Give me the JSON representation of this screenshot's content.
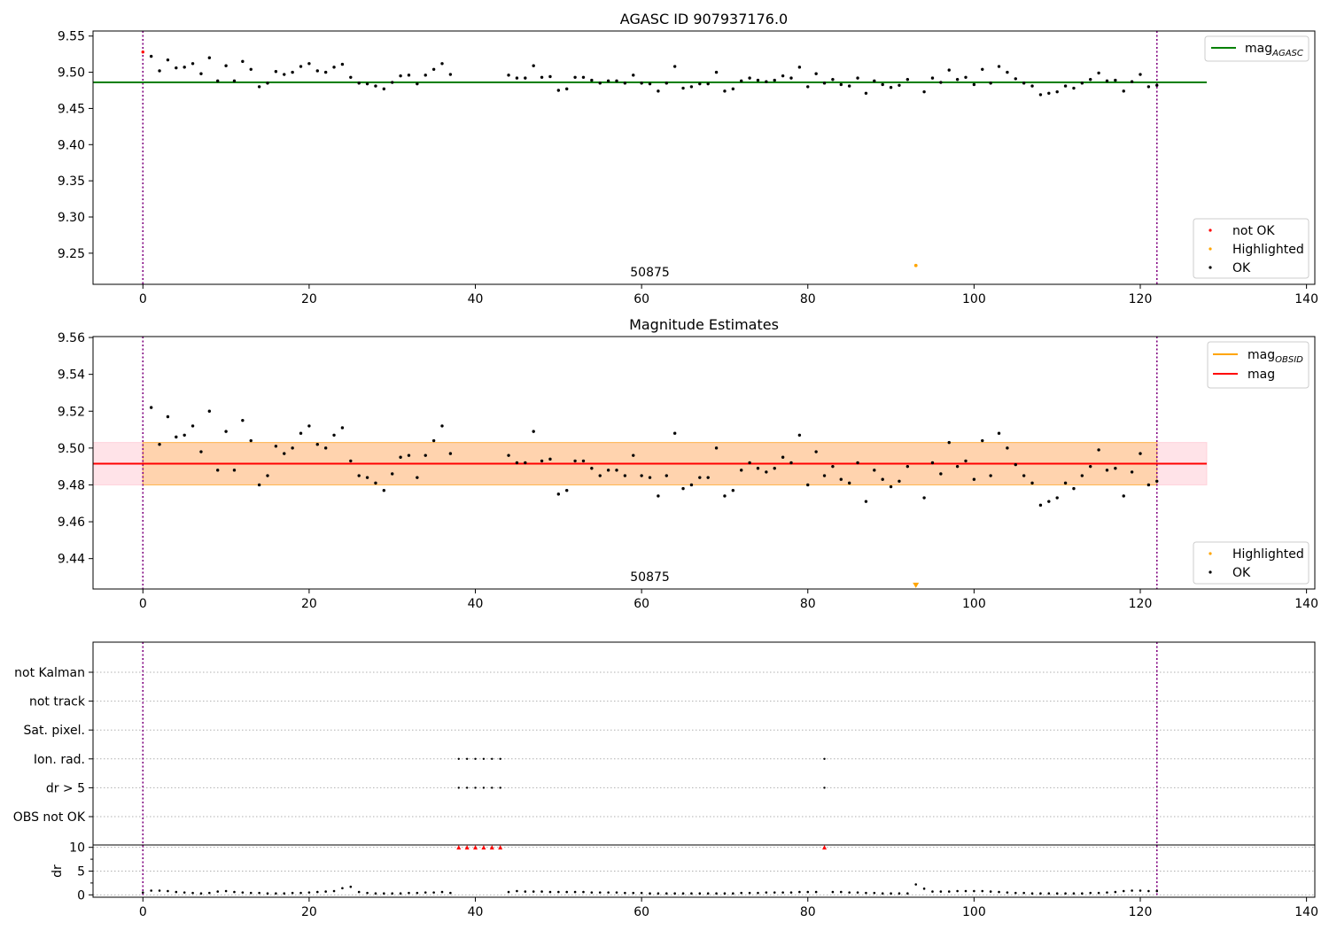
{
  "chart_data": [
    {
      "type": "scatter",
      "title": "AGASC ID 907937176.0",
      "xlim": [
        -6,
        141
      ],
      "ylim": [
        9.207,
        9.557
      ],
      "xticks": [
        0,
        20,
        40,
        60,
        80,
        100,
        120,
        140
      ],
      "yticks": [
        9.25,
        9.3,
        9.35,
        9.4,
        9.45,
        9.5,
        9.55
      ],
      "ytick_labels": [
        "9.25",
        "9.30",
        "9.35",
        "9.40",
        "9.45",
        "9.50",
        "9.55"
      ],
      "obsid_label": "50875",
      "obsid_label_x": 61,
      "vlines": [
        0,
        122
      ],
      "hline": {
        "name": "mag_AGASC",
        "label_main": "mag",
        "label_sub": "AGASC",
        "y": 9.486,
        "x_end": 128,
        "color": "#008000"
      },
      "legend_lines": [
        {
          "label_main": "mag",
          "label_sub": "AGASC",
          "color": "#008000"
        }
      ],
      "legend_points": [
        {
          "label": "not OK",
          "color": "#ff0000"
        },
        {
          "label": "Highlighted",
          "color": "#ffa500"
        },
        {
          "label": "OK",
          "color": "#000000"
        }
      ],
      "not_ok_points": [
        {
          "x": 0,
          "y": 9.528
        }
      ],
      "highlighted_points": [
        {
          "x": 93,
          "y": 9.233
        }
      ],
      "series": {
        "x": [
          1,
          2,
          3,
          4,
          5,
          6,
          7,
          8,
          9,
          10,
          11,
          12,
          13,
          14,
          15,
          16,
          17,
          18,
          19,
          20,
          21,
          22,
          23,
          24,
          25,
          26,
          27,
          28,
          29,
          30,
          31,
          32,
          33,
          34,
          35,
          36,
          37,
          44,
          45,
          46,
          47,
          48,
          49,
          50,
          51,
          52,
          53,
          54,
          55,
          56,
          57,
          58,
          59,
          60,
          61,
          62,
          63,
          64,
          65,
          66,
          67,
          68,
          69,
          70,
          71,
          72,
          73,
          74,
          75,
          76,
          77,
          78,
          79,
          80,
          81,
          82,
          83,
          84,
          85,
          86,
          87,
          88,
          89,
          90,
          91,
          92,
          94,
          95,
          96,
          97,
          98,
          99,
          100,
          101,
          102,
          103,
          104,
          105,
          106,
          107,
          108,
          109,
          110,
          111,
          112,
          113,
          114,
          115,
          116,
          117,
          118,
          119,
          120,
          121,
          122
        ],
        "y": [
          9.522,
          9.502,
          9.517,
          9.506,
          9.507,
          9.512,
          9.498,
          9.52,
          9.488,
          9.509,
          9.488,
          9.515,
          9.504,
          9.48,
          9.485,
          9.501,
          9.497,
          9.5,
          9.508,
          9.512,
          9.502,
          9.5,
          9.507,
          9.511,
          9.493,
          9.485,
          9.484,
          9.481,
          9.477,
          9.486,
          9.495,
          9.496,
          9.484,
          9.496,
          9.504,
          9.512,
          9.497,
          9.496,
          9.492,
          9.492,
          9.509,
          9.493,
          9.494,
          9.475,
          9.477,
          9.493,
          9.493,
          9.489,
          9.485,
          9.488,
          9.488,
          9.485,
          9.496,
          9.485,
          9.484,
          9.474,
          9.485,
          9.508,
          9.478,
          9.48,
          9.484,
          9.484,
          9.5,
          9.474,
          9.477,
          9.488,
          9.492,
          9.489,
          9.487,
          9.489,
          9.495,
          9.492,
          9.507,
          9.48,
          9.498,
          9.485,
          9.49,
          9.483,
          9.481,
          9.492,
          9.471,
          9.488,
          9.483,
          9.479,
          9.482,
          9.49,
          9.473,
          9.492,
          9.486,
          9.503,
          9.49,
          9.493,
          9.483,
          9.504,
          9.485,
          9.508,
          9.5,
          9.491,
          9.485,
          9.481,
          9.469,
          9.471,
          9.473,
          9.481,
          9.478,
          9.485,
          9.49,
          9.499,
          9.488,
          9.489,
          9.474,
          9.487,
          9.497,
          9.48,
          9.482
        ]
      }
    },
    {
      "type": "scatter",
      "title": "Magnitude Estimates",
      "xlim": [
        -6,
        141
      ],
      "ylim": [
        9.4235,
        9.5605
      ],
      "xticks": [
        0,
        20,
        40,
        60,
        80,
        100,
        120,
        140
      ],
      "yticks": [
        9.44,
        9.46,
        9.48,
        9.5,
        9.52,
        9.54,
        9.56
      ],
      "ytick_labels": [
        "9.44",
        "9.46",
        "9.48",
        "9.50",
        "9.52",
        "9.54",
        "9.56"
      ],
      "obsid_label": "50875",
      "obsid_label_x": 61,
      "vlines": [
        0,
        122
      ],
      "bands": [
        {
          "name": "mag-band",
          "x0": -6,
          "x1": 128,
          "y0": 9.48,
          "y1": 9.503,
          "color": "#ffc0cb",
          "opacity": 0.45
        },
        {
          "name": "obsid-band",
          "x0": 0,
          "x1": 122,
          "y0": 9.48,
          "y1": 9.503,
          "color": "#ffa500",
          "opacity": 0.25
        }
      ],
      "lines": [
        {
          "name": "mag_OBSID",
          "y": 9.4915,
          "x0": 0,
          "x1": 122,
          "color": "#ffa500"
        },
        {
          "name": "mag",
          "y": 9.4915,
          "x0": -6,
          "x1": 128,
          "color": "#ff0000"
        }
      ],
      "legend_lines": [
        {
          "label_main": "mag",
          "label_sub": "OBSID",
          "color": "#ffa500"
        },
        {
          "label_main": "mag",
          "label_sub": "",
          "color": "#ff0000"
        }
      ],
      "legend_points": [
        {
          "label": "Highlighted",
          "color": "#ffa500"
        },
        {
          "label": "OK",
          "color": "#000000"
        }
      ],
      "highlighted_points": [
        {
          "x": 93,
          "y": 9.4255,
          "marker": "triangle"
        }
      ],
      "series": {
        "x": [
          1,
          2,
          3,
          4,
          5,
          6,
          7,
          8,
          9,
          10,
          11,
          12,
          13,
          14,
          15,
          16,
          17,
          18,
          19,
          20,
          21,
          22,
          23,
          24,
          25,
          26,
          27,
          28,
          29,
          30,
          31,
          32,
          33,
          34,
          35,
          36,
          37,
          44,
          45,
          46,
          47,
          48,
          49,
          50,
          51,
          52,
          53,
          54,
          55,
          56,
          57,
          58,
          59,
          60,
          61,
          62,
          63,
          64,
          65,
          66,
          67,
          68,
          69,
          70,
          71,
          72,
          73,
          74,
          75,
          76,
          77,
          78,
          79,
          80,
          81,
          82,
          83,
          84,
          85,
          86,
          87,
          88,
          89,
          90,
          91,
          92,
          94,
          95,
          96,
          97,
          98,
          99,
          100,
          101,
          102,
          103,
          104,
          105,
          106,
          107,
          108,
          109,
          110,
          111,
          112,
          113,
          114,
          115,
          116,
          117,
          118,
          119,
          120,
          121,
          122
        ],
        "y": [
          9.522,
          9.502,
          9.517,
          9.506,
          9.507,
          9.512,
          9.498,
          9.52,
          9.488,
          9.509,
          9.488,
          9.515,
          9.504,
          9.48,
          9.485,
          9.501,
          9.497,
          9.5,
          9.508,
          9.512,
          9.502,
          9.5,
          9.507,
          9.511,
          9.493,
          9.485,
          9.484,
          9.481,
          9.477,
          9.486,
          9.495,
          9.496,
          9.484,
          9.496,
          9.504,
          9.512,
          9.497,
          9.496,
          9.492,
          9.492,
          9.509,
          9.493,
          9.494,
          9.475,
          9.477,
          9.493,
          9.493,
          9.489,
          9.485,
          9.488,
          9.488,
          9.485,
          9.496,
          9.485,
          9.484,
          9.474,
          9.485,
          9.508,
          9.478,
          9.48,
          9.484,
          9.484,
          9.5,
          9.474,
          9.477,
          9.488,
          9.492,
          9.489,
          9.487,
          9.489,
          9.495,
          9.492,
          9.507,
          9.48,
          9.498,
          9.485,
          9.49,
          9.483,
          9.481,
          9.492,
          9.471,
          9.488,
          9.483,
          9.479,
          9.482,
          9.49,
          9.473,
          9.492,
          9.486,
          9.503,
          9.49,
          9.493,
          9.483,
          9.504,
          9.485,
          9.508,
          9.5,
          9.491,
          9.485,
          9.481,
          9.469,
          9.471,
          9.473,
          9.481,
          9.478,
          9.485,
          9.49,
          9.499,
          9.488,
          9.489,
          9.474,
          9.487,
          9.497,
          9.48,
          9.482
        ]
      }
    },
    {
      "type": "scatter",
      "title": "",
      "xlim": [
        -6,
        141
      ],
      "xticks": [
        0,
        20,
        40,
        60,
        80,
        100,
        120,
        140
      ],
      "vlines": [
        0,
        122
      ],
      "flag_rows": [
        "not Kalman",
        "not track",
        "Sat. pixel.",
        "Ion. rad.",
        "dr > 5",
        "OBS not OK"
      ],
      "flags": {
        "Ion. rad.": [
          38,
          39,
          40,
          41,
          42,
          43,
          82
        ],
        "dr > 5": [
          38,
          39,
          40,
          41,
          42,
          43,
          82
        ]
      },
      "dr": {
        "ylabel": "dr",
        "ylim": [
          -0.5,
          10.5
        ],
        "yticks": [
          0,
          5,
          10
        ],
        "ytick_labels": [
          "0",
          "5",
          "10"
        ],
        "clipped_points": [
          38,
          39,
          40,
          41,
          42,
          43,
          82
        ],
        "clip_value": 10,
        "x": [
          0,
          1,
          2,
          3,
          4,
          5,
          6,
          7,
          8,
          9,
          10,
          11,
          12,
          13,
          14,
          15,
          16,
          17,
          18,
          19,
          20,
          21,
          22,
          23,
          24,
          25,
          26,
          27,
          28,
          29,
          30,
          31,
          32,
          33,
          34,
          35,
          36,
          37,
          44,
          45,
          46,
          47,
          48,
          49,
          50,
          51,
          52,
          53,
          54,
          55,
          56,
          57,
          58,
          59,
          60,
          61,
          62,
          63,
          64,
          65,
          66,
          67,
          68,
          69,
          70,
          71,
          72,
          73,
          74,
          75,
          76,
          77,
          78,
          79,
          80,
          81,
          83,
          84,
          85,
          86,
          87,
          88,
          89,
          90,
          91,
          92,
          93,
          94,
          95,
          96,
          97,
          98,
          99,
          100,
          101,
          102,
          103,
          104,
          105,
          106,
          107,
          108,
          109,
          110,
          111,
          112,
          113,
          114,
          115,
          116,
          117,
          118,
          119,
          120,
          121,
          122
        ],
        "y": [
          0.5,
          0.9,
          0.9,
          0.8,
          0.6,
          0.5,
          0.4,
          0.3,
          0.4,
          0.7,
          0.8,
          0.6,
          0.5,
          0.4,
          0.4,
          0.3,
          0.3,
          0.3,
          0.4,
          0.4,
          0.5,
          0.6,
          0.7,
          0.8,
          1.4,
          1.7,
          0.6,
          0.4,
          0.3,
          0.3,
          0.3,
          0.3,
          0.4,
          0.4,
          0.5,
          0.5,
          0.6,
          0.4,
          0.6,
          0.8,
          0.7,
          0.7,
          0.7,
          0.6,
          0.6,
          0.6,
          0.6,
          0.6,
          0.5,
          0.5,
          0.5,
          0.5,
          0.4,
          0.4,
          0.4,
          0.3,
          0.3,
          0.3,
          0.3,
          0.3,
          0.3,
          0.3,
          0.3,
          0.3,
          0.3,
          0.3,
          0.4,
          0.4,
          0.4,
          0.5,
          0.5,
          0.5,
          0.5,
          0.6,
          0.6,
          0.6,
          0.6,
          0.6,
          0.5,
          0.5,
          0.4,
          0.4,
          0.3,
          0.3,
          0.3,
          0.3,
          2.2,
          1.3,
          0.7,
          0.7,
          0.7,
          0.8,
          0.8,
          0.8,
          0.8,
          0.7,
          0.6,
          0.5,
          0.4,
          0.4,
          0.3,
          0.3,
          0.3,
          0.3,
          0.3,
          0.3,
          0.3,
          0.4,
          0.4,
          0.5,
          0.6,
          0.8,
          0.9,
          0.9,
          0.8,
          0.8
        ]
      }
    }
  ]
}
